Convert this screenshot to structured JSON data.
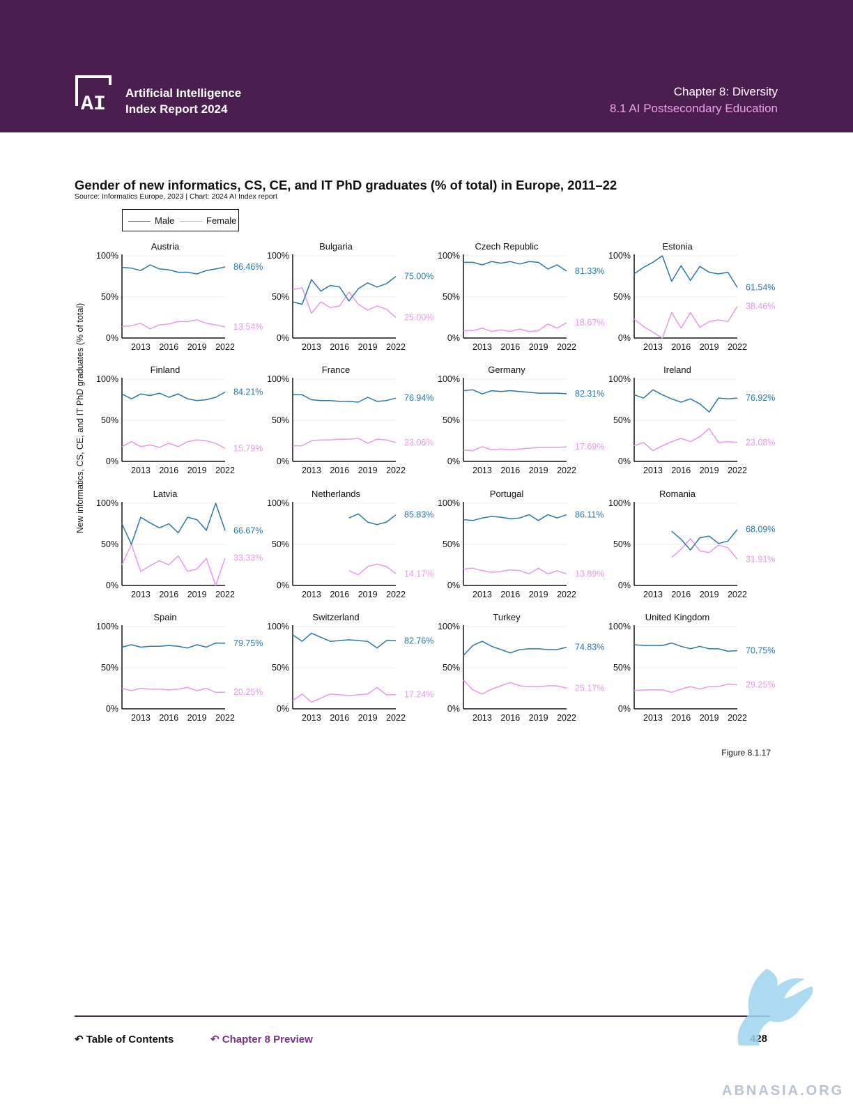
{
  "header": {
    "brand_line1": "Artificial Intelligence",
    "brand_line2": "Index Report 2024",
    "chapter": "Chapter 8: Diversity",
    "section": "8.1 AI Postsecondary Education",
    "logo_text": "AI"
  },
  "legend": {
    "male": "Male",
    "female": "Female"
  },
  "colors": {
    "male": "#2a78a8",
    "female": "#e59be8",
    "header_bg": "#4b1e50"
  },
  "footer": {
    "figure": "Figure 8.1.17",
    "toc": "Table of Contents",
    "chapter_preview": "Chapter 8 Preview",
    "page": "428",
    "watermark": "ABNASIA.ORG"
  },
  "chart_data": {
    "type": "line",
    "title": "Gender of new informatics, CS, CE, and IT PhD graduates (% of total) in Europe, 2011–22",
    "source": "Source: Informatics Europe, 2023 | Chart: 2024 AI Index report",
    "ylabel": "New informatics, CS, CE, and IT PhD graduates (% of total)",
    "ylim": [
      0,
      100
    ],
    "yticks": [
      "0%",
      "50%",
      "100%"
    ],
    "xticks": [
      "2013",
      "2016",
      "2019",
      "2022"
    ],
    "x": [
      2011,
      2012,
      2013,
      2014,
      2015,
      2016,
      2017,
      2018,
      2019,
      2020,
      2021,
      2022
    ],
    "legend_position": "top-left",
    "panels": [
      {
        "country": "Austria",
        "male": [
          86,
          85,
          82,
          89,
          84,
          83,
          80,
          80,
          78,
          82,
          84,
          86.46
        ],
        "female": [
          14,
          15,
          18,
          11,
          16,
          17,
          20,
          20,
          22,
          18,
          16,
          13.54
        ],
        "male_label": "86.46%",
        "female_label": "13.54%"
      },
      {
        "country": "Bulgaria",
        "male": [
          44,
          41,
          71,
          57,
          64,
          62,
          45,
          60,
          67,
          62,
          66,
          75
        ],
        "female": [
          59,
          61,
          30,
          44,
          37,
          39,
          56,
          41,
          34,
          39,
          35,
          25
        ],
        "male_label": "75.00%",
        "female_label": "25.00%"
      },
      {
        "country": "Czech Republic",
        "male": [
          92,
          92,
          89,
          93,
          91,
          93,
          90,
          93,
          92,
          84,
          89,
          81.33
        ],
        "female": [
          9,
          9,
          12,
          8,
          10,
          8,
          11,
          8,
          9,
          17,
          12,
          18.67
        ],
        "male_label": "81.33%",
        "female_label": "18.67%"
      },
      {
        "country": "Estonia",
        "male": [
          78,
          86,
          92,
          100,
          69,
          88,
          70,
          87,
          80,
          78,
          80,
          61.54
        ],
        "female": [
          23,
          14,
          7,
          0,
          31,
          12,
          31,
          13,
          20,
          22,
          20,
          38.46
        ],
        "male_label": "61.54%",
        "female_label": "38.46%"
      },
      {
        "country": "Finland",
        "male": [
          82,
          76,
          82,
          80,
          83,
          78,
          82,
          76,
          74,
          75,
          78,
          84.21
        ],
        "female": [
          18,
          24,
          18,
          20,
          17,
          22,
          18,
          24,
          26,
          25,
          22,
          15.79
        ],
        "male_label": "84.21%",
        "female_label": "15.79%"
      },
      {
        "country": "France",
        "male": [
          81,
          81,
          75,
          74,
          74,
          73,
          73,
          72,
          78,
          73,
          74,
          76.94
        ],
        "female": [
          19,
          19,
          25,
          26,
          26,
          27,
          27,
          28,
          22,
          27,
          26,
          23.06
        ],
        "male_label": "76.94%",
        "female_label": "23.06%"
      },
      {
        "country": "Germany",
        "male": [
          86,
          87,
          82,
          86,
          85,
          86,
          85,
          84,
          83,
          83,
          83,
          82.31
        ],
        "female": [
          14,
          13,
          18,
          14,
          15,
          14,
          15,
          16,
          17,
          17,
          17,
          17.69
        ],
        "male_label": "82.31%",
        "female_label": "17.69%"
      },
      {
        "country": "Ireland",
        "male": [
          81,
          77,
          87,
          81,
          76,
          72,
          76,
          70,
          60,
          77,
          76,
          76.92
        ],
        "female": [
          19,
          23,
          13,
          19,
          24,
          28,
          24,
          30,
          40,
          23,
          24,
          23.08
        ],
        "male_label": "76.92%",
        "female_label": "23.08%"
      },
      {
        "country": "Latvia",
        "male": [
          75,
          50,
          83,
          76,
          70,
          75,
          64,
          83,
          80,
          67,
          100,
          66.67
        ],
        "female": [
          25,
          50,
          17,
          24,
          30,
          25,
          36,
          17,
          20,
          33,
          0,
          33.33
        ],
        "male_label": "66.67%",
        "female_label": "33.33%"
      },
      {
        "country": "Netherlands",
        "male": [
          null,
          null,
          null,
          null,
          null,
          null,
          82,
          87,
          77,
          74,
          77,
          85.83
        ],
        "female": [
          null,
          null,
          null,
          null,
          null,
          null,
          18,
          13,
          23,
          26,
          23,
          14.17
        ],
        "male_label": "85.83%",
        "female_label": "14.17%"
      },
      {
        "country": "Portugal",
        "male": [
          80,
          79,
          82,
          84,
          83,
          81,
          82,
          86,
          79,
          86,
          82,
          86.11
        ],
        "female": [
          20,
          21,
          18,
          16,
          17,
          19,
          18,
          14,
          21,
          14,
          18,
          13.89
        ],
        "male_label": "86.11%",
        "female_label": "13.89%"
      },
      {
        "country": "Romania",
        "male": [
          null,
          null,
          null,
          null,
          66,
          56,
          43,
          58,
          60,
          51,
          54,
          68.09
        ],
        "female": [
          null,
          null,
          null,
          null,
          34,
          44,
          57,
          42,
          40,
          49,
          46,
          31.91
        ],
        "male_label": "68.09%",
        "female_label": "31.91%"
      },
      {
        "country": "Spain",
        "male": [
          75,
          78,
          75,
          76,
          76,
          77,
          76,
          74,
          78,
          75,
          80,
          79.75
        ],
        "female": [
          25,
          22,
          25,
          24,
          24,
          23,
          24,
          26,
          22,
          25,
          20,
          20.25
        ],
        "male_label": "79.75%",
        "female_label": "20.25%"
      },
      {
        "country": "Switzerland",
        "male": [
          90,
          82,
          92,
          87,
          82,
          83,
          84,
          83,
          82,
          74,
          83,
          82.76
        ],
        "female": [
          10,
          18,
          8,
          13,
          18,
          17,
          16,
          17,
          18,
          26,
          17,
          17.24
        ],
        "male_label": "82.76%",
        "female_label": "17.24%"
      },
      {
        "country": "Turkey",
        "male": [
          65,
          77,
          82,
          76,
          72,
          68,
          72,
          73,
          73,
          72,
          72,
          74.83
        ],
        "female": [
          35,
          23,
          18,
          24,
          28,
          32,
          28,
          27,
          27,
          28,
          28,
          25.17
        ],
        "male_label": "74.83%",
        "female_label": "25.17%"
      },
      {
        "country": "United Kingdom",
        "male": [
          78,
          77,
          77,
          77,
          80,
          76,
          73,
          76,
          73,
          73,
          70,
          70.75
        ],
        "female": [
          22,
          23,
          23,
          23,
          20,
          24,
          27,
          24,
          27,
          27,
          30,
          29.25
        ],
        "male_label": "70.75%",
        "female_label": "29.25%"
      }
    ]
  }
}
